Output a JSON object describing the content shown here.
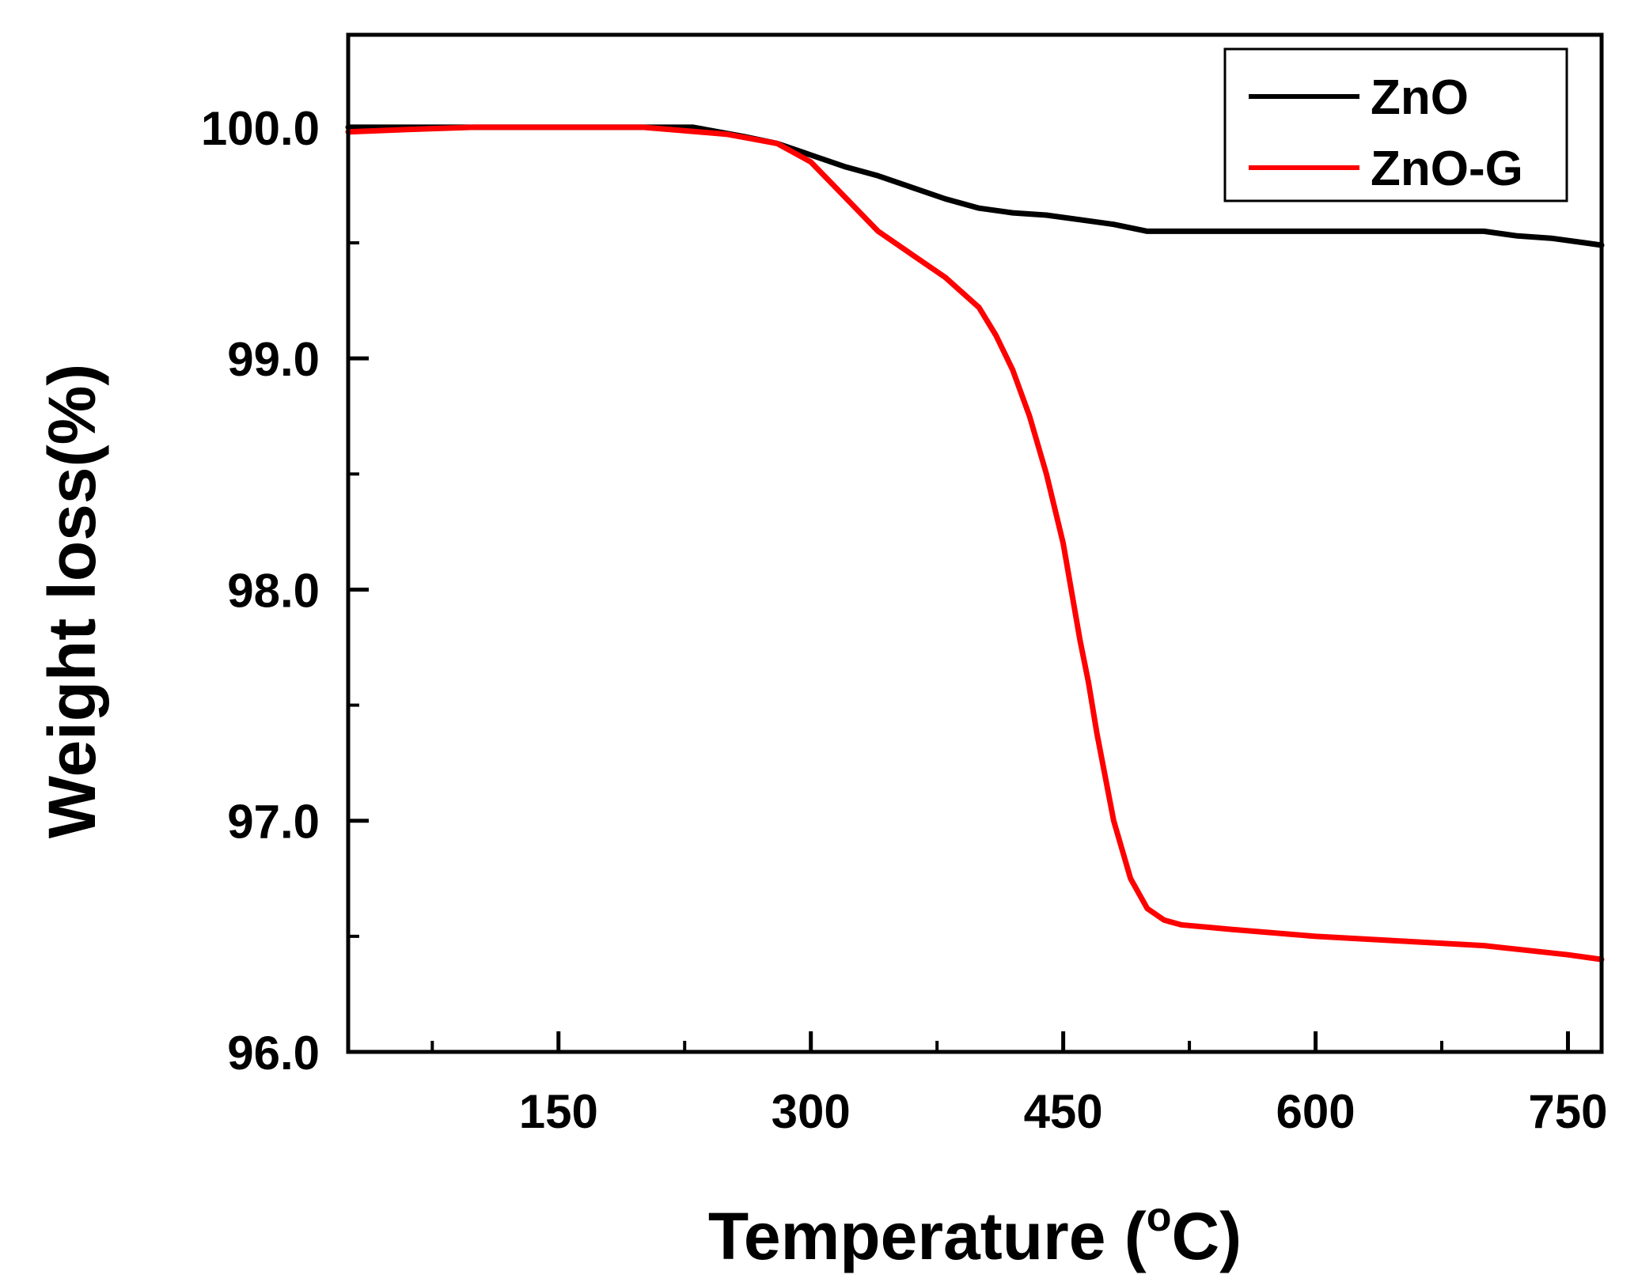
{
  "chart_data": {
    "type": "line",
    "title": "",
    "xlabel": "Temperature (",
    "xlabel_degree": "o",
    "xlabel_unit": "C)",
    "ylabel": "Weight loss(%)",
    "xlim": [
      25,
      770
    ],
    "ylim": [
      96.0,
      100.4
    ],
    "x_ticks": [
      150,
      300,
      450,
      600,
      750
    ],
    "x_tick_labels": [
      "150",
      "300",
      "450",
      "600",
      "750"
    ],
    "x_minor_ticks": [
      75,
      225,
      375,
      525,
      675
    ],
    "y_ticks": [
      96.0,
      97.0,
      98.0,
      99.0,
      100.0
    ],
    "y_tick_labels": [
      "96.0",
      "97.0",
      "98.0",
      "99.0",
      "100.0"
    ],
    "y_minor_ticks": [
      96.5,
      97.5,
      98.5,
      99.5
    ],
    "legend_position": "top-right",
    "series": [
      {
        "name": "ZnO",
        "color": "#000000",
        "x": [
          25,
          100,
          230,
          260,
          280,
          300,
          320,
          340,
          360,
          380,
          400,
          420,
          440,
          460,
          480,
          500,
          550,
          600,
          650,
          700,
          720,
          740,
          760,
          770
        ],
        "y": [
          100.0,
          100.0,
          100.0,
          99.96,
          99.93,
          99.88,
          99.83,
          99.79,
          99.74,
          99.69,
          99.65,
          99.63,
          99.62,
          99.6,
          99.58,
          99.55,
          99.55,
          99.55,
          99.55,
          99.55,
          99.53,
          99.52,
          99.5,
          99.49
        ]
      },
      {
        "name": "ZnO-G",
        "color": "#ff0000",
        "x": [
          25,
          60,
          100,
          200,
          250,
          280,
          300,
          320,
          340,
          360,
          380,
          400,
          410,
          420,
          430,
          440,
          450,
          460,
          465,
          470,
          480,
          490,
          500,
          510,
          520,
          550,
          600,
          650,
          700,
          750,
          770
        ],
        "y": [
          99.98,
          99.99,
          100.0,
          100.0,
          99.97,
          99.93,
          99.85,
          99.7,
          99.55,
          99.45,
          99.35,
          99.22,
          99.1,
          98.95,
          98.75,
          98.5,
          98.2,
          97.78,
          97.6,
          97.38,
          97.0,
          96.75,
          96.62,
          96.57,
          96.55,
          96.53,
          96.5,
          96.48,
          96.46,
          96.42,
          96.4
        ]
      }
    ]
  }
}
